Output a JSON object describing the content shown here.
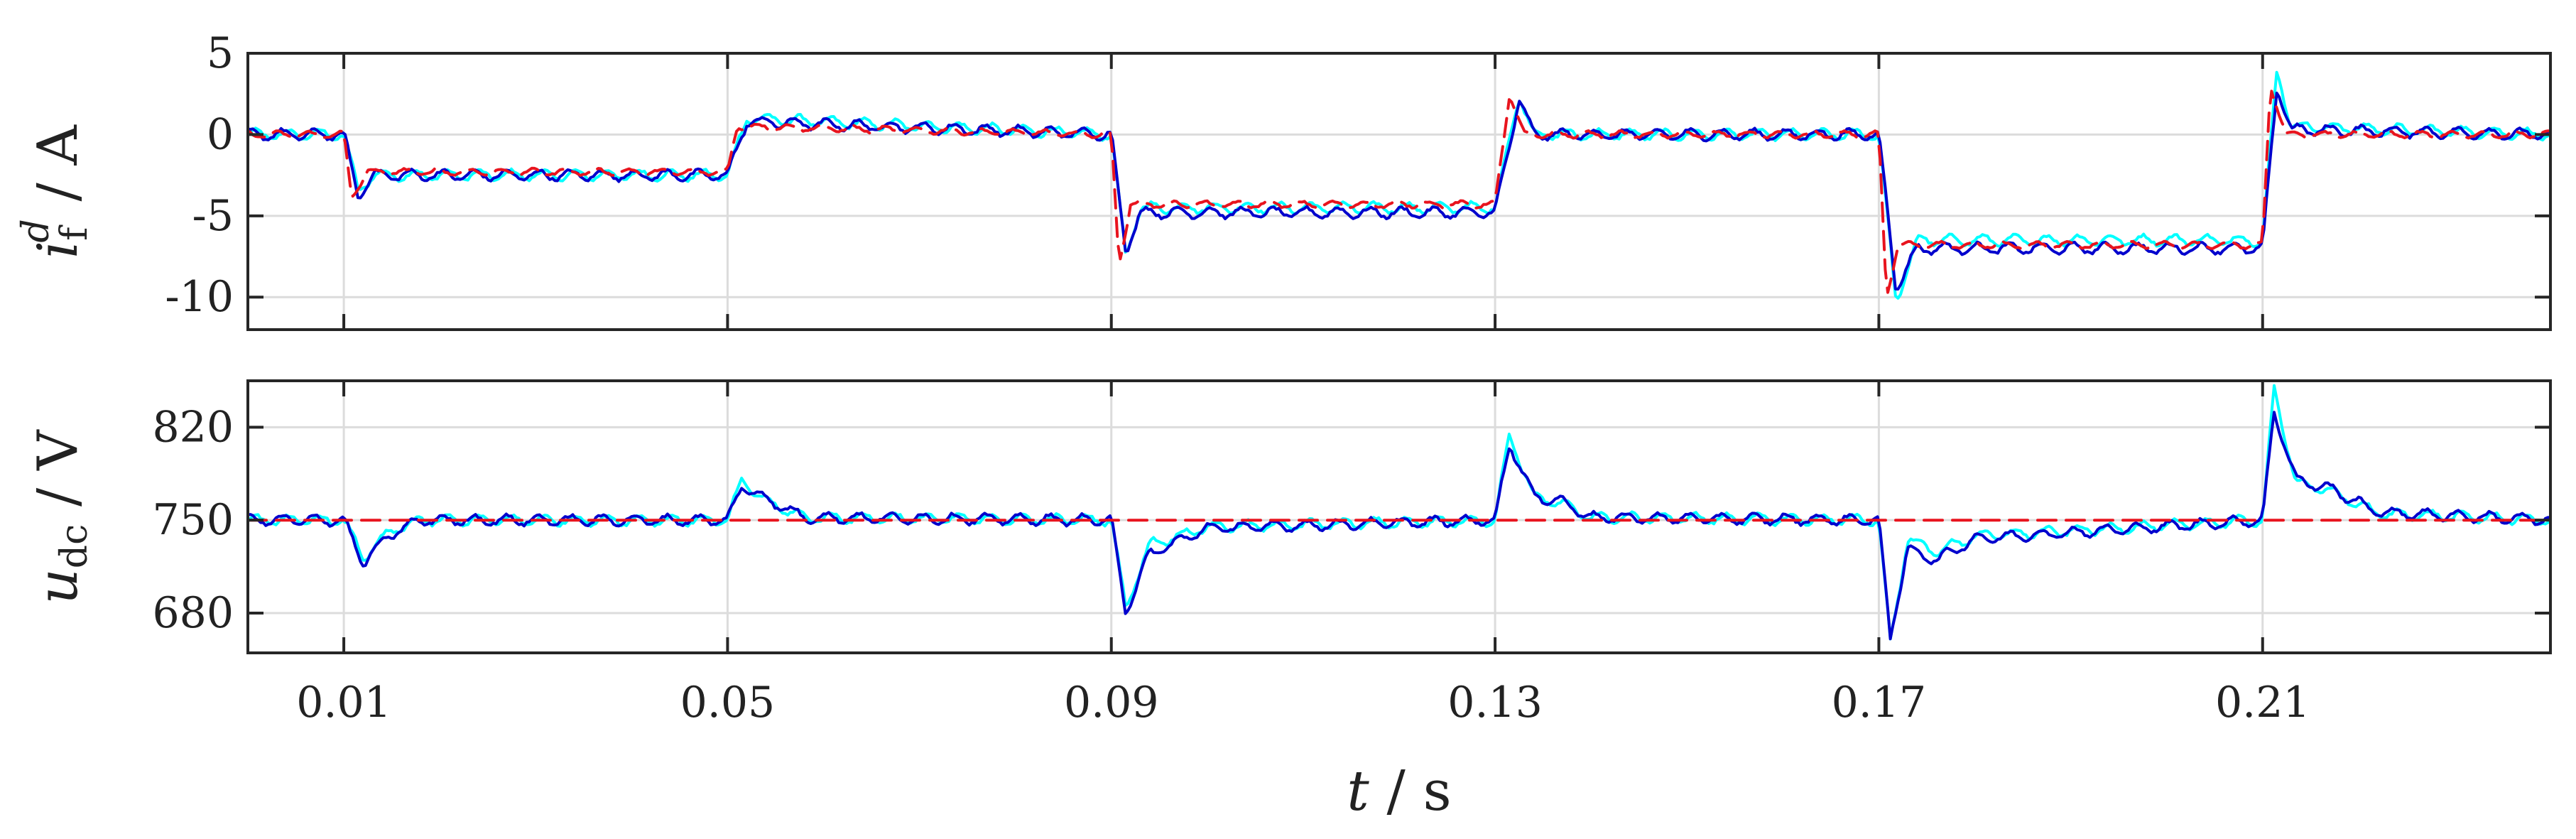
{
  "chart_data": [
    {
      "type": "line",
      "id": "top",
      "ylabel": {
        "symbol": "i",
        "subscript": "f",
        "superscript": "d",
        "unit": " / A"
      },
      "ylim": [
        -12,
        5
      ],
      "yticks": [
        -10,
        -5,
        0,
        5
      ],
      "ytick_labels": [
        "-10",
        "-5",
        "0",
        "5"
      ],
      "xlim": [
        0,
        0.24
      ],
      "xticks": [
        0.01,
        0.05,
        0.09,
        0.13,
        0.17,
        0.21
      ],
      "grid": true,
      "series": [
        {
          "color": "#00ffff",
          "dash": "solid",
          "x": [
            0,
            0.01,
            0.0115,
            0.013,
            0.05,
            0.052,
            0.09,
            0.0915,
            0.093,
            0.13,
            0.1325,
            0.134,
            0.17,
            0.1718,
            0.174,
            0.21,
            0.2115,
            0.213,
            0.24
          ],
          "y": [
            0,
            0,
            -3.5,
            -2.5,
            -2.5,
            1,
            0,
            -7.5,
            -4.5,
            -4.5,
            2.5,
            0,
            0,
            -10.3,
            -6.5,
            -6.5,
            4,
            0.5,
            0
          ]
        },
        {
          "color": "#0000cd",
          "dash": "solid",
          "x": [
            0,
            0.01,
            0.0115,
            0.013,
            0.05,
            0.052,
            0.09,
            0.0915,
            0.093,
            0.13,
            0.1325,
            0.134,
            0.17,
            0.1718,
            0.174,
            0.21,
            0.2115,
            0.213,
            0.24
          ],
          "y": [
            0,
            0,
            -3.8,
            -2.5,
            -2.5,
            0.8,
            0,
            -7.2,
            -4.8,
            -4.8,
            2.2,
            0,
            0,
            -9.5,
            -7,
            -7,
            3,
            0.3,
            0
          ]
        },
        {
          "color": "#e8141e",
          "dash": "dashed",
          "x": [
            0,
            0.01,
            0.0108,
            0.0125,
            0.05,
            0.051,
            0.09,
            0.0908,
            0.092,
            0.13,
            0.1315,
            0.133,
            0.17,
            0.1708,
            0.172,
            0.21,
            0.2108,
            0.2125,
            0.24
          ],
          "y": [
            0,
            0,
            -3.8,
            -2.3,
            -2.3,
            0.5,
            0,
            -8,
            -4.3,
            -4.3,
            2.5,
            0,
            0,
            -10,
            -6.8,
            -6.8,
            3,
            0,
            0
          ]
        }
      ]
    },
    {
      "type": "line",
      "id": "bottom",
      "ylabel": {
        "symbol": "u",
        "subscript": "dc",
        "unit": " / V"
      },
      "ylim": [
        650,
        855
      ],
      "yticks": [
        680,
        750,
        820
      ],
      "ytick_labels": [
        "680",
        "750",
        "820"
      ],
      "xlim": [
        0,
        0.24
      ],
      "xticks": [
        0.01,
        0.05,
        0.09,
        0.13,
        0.17,
        0.21
      ],
      "xtick_labels": [
        "0.01",
        "0.05",
        "0.09",
        "0.13",
        "0.17",
        "0.21"
      ],
      "xlabel": {
        "symbol": "t",
        "unit": " / s"
      },
      "grid": true,
      "series": [
        {
          "color": "#00ffff",
          "dash": "solid",
          "x": [
            0,
            0.01,
            0.012,
            0.015,
            0.018,
            0.05,
            0.0515,
            0.054,
            0.058,
            0.09,
            0.0915,
            0.094,
            0.097,
            0.1,
            0.13,
            0.1315,
            0.134,
            0.137,
            0.14,
            0.17,
            0.1712,
            0.173,
            0.176,
            0.18,
            0.21,
            0.2112,
            0.2135,
            0.217,
            0.222,
            0.24
          ],
          "y": [
            750,
            750,
            722,
            742,
            750,
            750,
            780,
            764,
            752,
            750,
            684,
            732,
            738,
            745,
            750,
            815,
            768,
            762,
            752,
            750,
            658,
            736,
            726,
            738,
            750,
            848,
            778,
            772,
            755,
            750
          ]
        },
        {
          "color": "#0000cd",
          "dash": "solid",
          "x": [
            0,
            0.01,
            0.012,
            0.015,
            0.018,
            0.05,
            0.0515,
            0.054,
            0.058,
            0.09,
            0.0915,
            0.094,
            0.097,
            0.1,
            0.13,
            0.1315,
            0.134,
            0.137,
            0.14,
            0.17,
            0.1712,
            0.173,
            0.176,
            0.18,
            0.21,
            0.2112,
            0.2135,
            0.217,
            0.222,
            0.24
          ],
          "y": [
            750,
            750,
            718,
            740,
            750,
            750,
            776,
            766,
            752,
            750,
            681,
            725,
            734,
            744,
            750,
            808,
            768,
            764,
            752,
            750,
            662,
            728,
            720,
            736,
            750,
            832,
            780,
            774,
            756,
            750
          ]
        },
        {
          "color": "#e8141e",
          "dash": "dashed",
          "x": [
            0,
            0.24
          ],
          "y": [
            750,
            750
          ]
        }
      ]
    }
  ]
}
